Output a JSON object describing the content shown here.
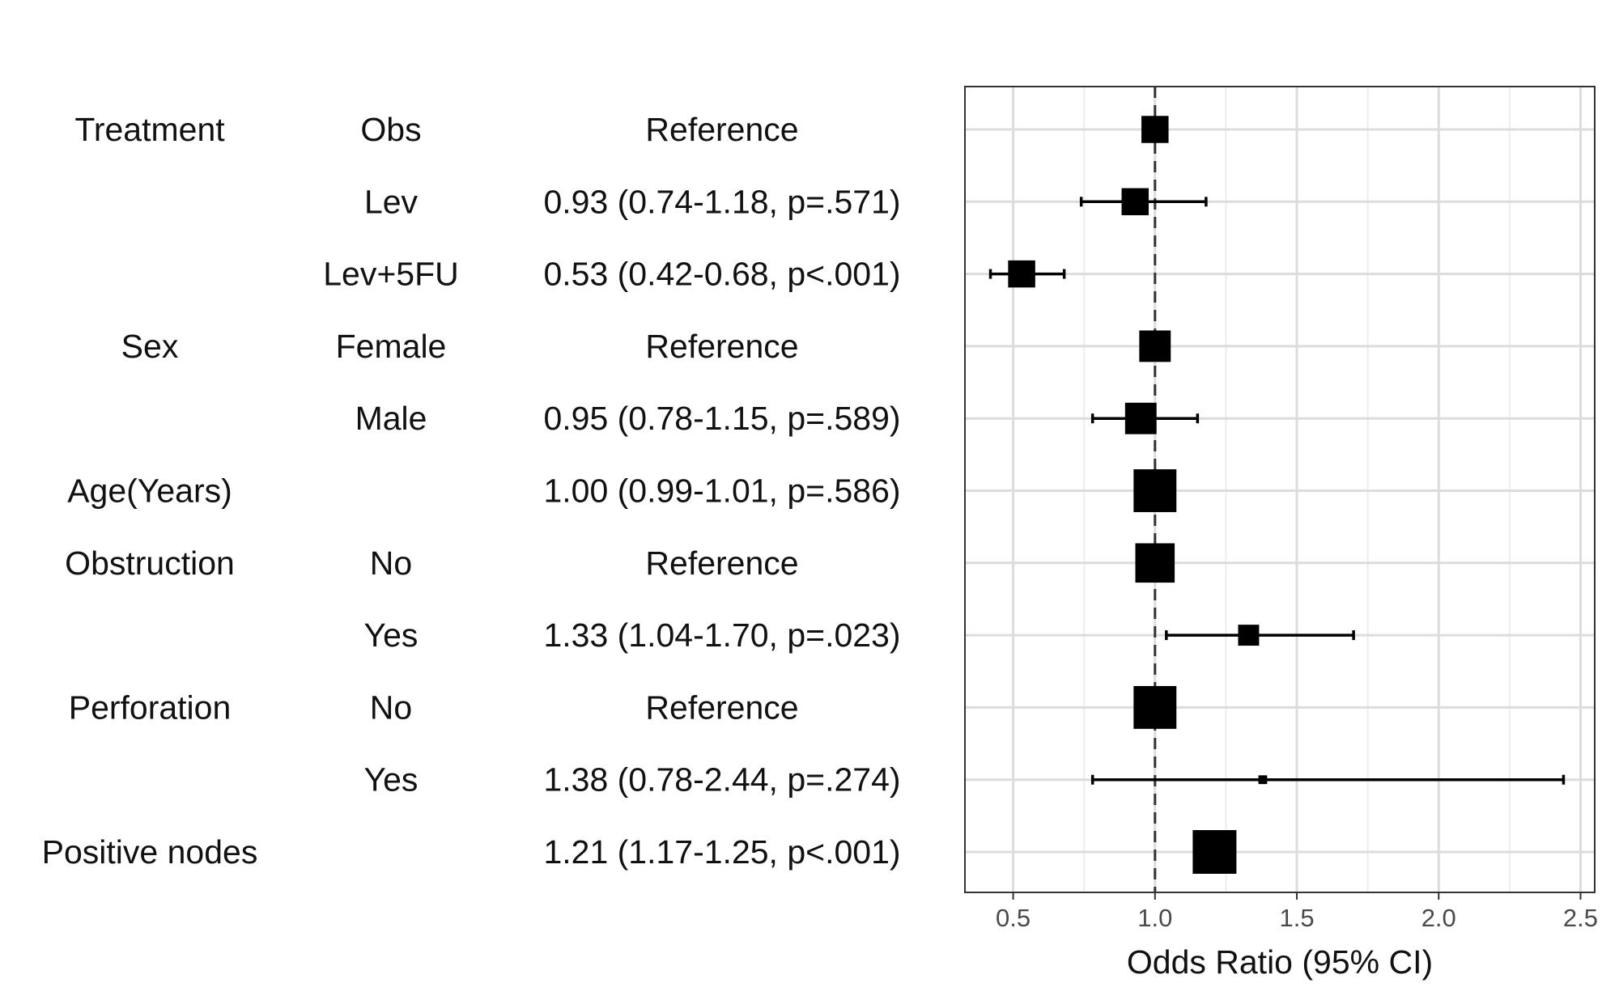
{
  "chart_data": {
    "type": "forest",
    "xlabel": "Odds Ratio (95% CI)",
    "xlim": [
      0.33,
      2.55
    ],
    "xticks": [
      0.5,
      1.0,
      1.5,
      2.0,
      2.5
    ],
    "xtick_labels": [
      "0.5",
      "1.0",
      "1.5",
      "2.0",
      "2.5"
    ],
    "reference_line": 1.0,
    "grid": true,
    "rows": [
      {
        "variable": "Treatment",
        "level": "Obs",
        "text": "Reference",
        "or": 1.0,
        "lower": null,
        "upper": null,
        "marker_size": 0.62
      },
      {
        "variable": "",
        "level": "Lev",
        "text": "0.93 (0.74-1.18, p=.571)",
        "or": 0.93,
        "lower": 0.74,
        "upper": 1.18,
        "marker_size": 0.62
      },
      {
        "variable": "",
        "level": "Lev+5FU",
        "text": "0.53 (0.42-0.68, p<.001)",
        "or": 0.53,
        "lower": 0.42,
        "upper": 0.68,
        "marker_size": 0.62
      },
      {
        "variable": "Sex",
        "level": "Female",
        "text": "Reference",
        "or": 1.0,
        "lower": null,
        "upper": null,
        "marker_size": 0.72
      },
      {
        "variable": "",
        "level": "Male",
        "text": "0.95 (0.78-1.15, p=.589)",
        "or": 0.95,
        "lower": 0.78,
        "upper": 1.15,
        "marker_size": 0.72
      },
      {
        "variable": "Age(Years)",
        "level": "",
        "text": "1.00 (0.99-1.01, p=.586)",
        "or": 1.0,
        "lower": 0.99,
        "upper": 1.01,
        "marker_size": 0.98
      },
      {
        "variable": "Obstruction",
        "level": "No",
        "text": "Reference",
        "or": 1.0,
        "lower": null,
        "upper": null,
        "marker_size": 0.9
      },
      {
        "variable": "",
        "level": "Yes",
        "text": "1.33 (1.04-1.70, p=.023)",
        "or": 1.33,
        "lower": 1.04,
        "upper": 1.7,
        "marker_size": 0.48
      },
      {
        "variable": "Perforation",
        "level": "No",
        "text": "Reference",
        "or": 1.0,
        "lower": null,
        "upper": null,
        "marker_size": 0.98
      },
      {
        "variable": "",
        "level": "Yes",
        "text": "1.38 (0.78-2.44, p=.274)",
        "or": 1.38,
        "lower": 0.78,
        "upper": 2.44,
        "marker_size": 0.2
      },
      {
        "variable": "Positive nodes",
        "level": "",
        "text": "1.21 (1.17-1.25, p<.001)",
        "or": 1.21,
        "lower": 1.17,
        "upper": 1.25,
        "marker_size": 1.0
      }
    ]
  }
}
